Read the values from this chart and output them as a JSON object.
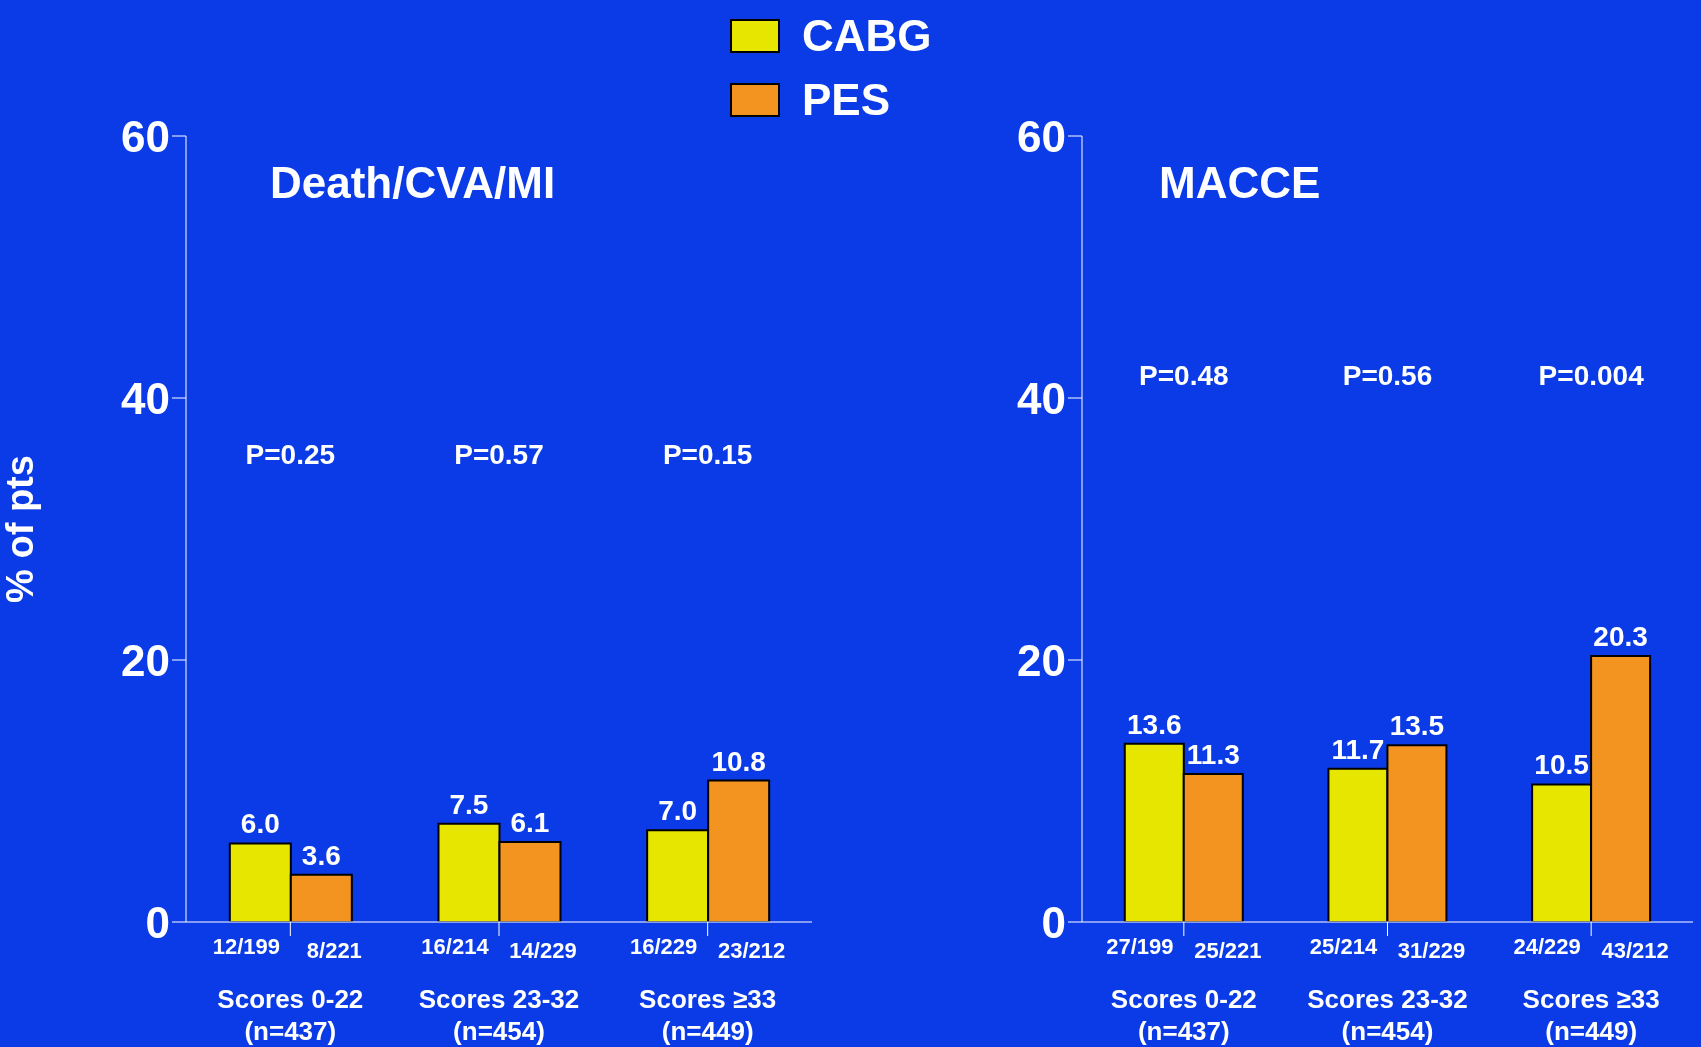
{
  "chart_data": [
    {
      "type": "bar",
      "title": "Death/CVA/MI",
      "ylabel": "% of pts",
      "categories": [
        "Scores 0-22 (n=437)",
        "Scores 23-32 (n=454)",
        "Scores ≥33 (n=449)"
      ],
      "series": [
        {
          "name": "CABG",
          "color": "#e6e600",
          "values": [
            6.0,
            7.5,
            7.0
          ],
          "value_labels": [
            "6.0",
            "7.5",
            "7.0"
          ]
        },
        {
          "name": "PES",
          "color": "#f39420",
          "values": [
            3.6,
            6.1,
            10.8
          ],
          "value_labels": [
            "3.6",
            "6.1",
            "10.8"
          ]
        }
      ],
      "ylim": [
        0,
        60
      ],
      "yticks": [
        0,
        20,
        40,
        60
      ],
      "legend": "top",
      "annotations": [
        "P=0.25",
        "P=0.57",
        "P=0.15",
        {
          "text": "12/199",
          "x": "Scores 0-22 (n=437)",
          "y": 0
        },
        {
          "text": "8/221",
          "x": "Scores 0-22 (n=437)",
          "y": 0
        },
        {
          "text": "16/214",
          "x": "Scores 23-32 (n=454)",
          "y": 0
        },
        {
          "text": "14/229",
          "x": "Scores 23-32 (n=454)",
          "y": 0
        },
        {
          "text": "16/229",
          "x": "Scores ≥33 (n=449)",
          "y": 0
        },
        {
          "text": "23/212",
          "x": "Scores ≥33 (n=449)",
          "y": 0
        }
      ]
    },
    {
      "type": "bar",
      "title": "MACCE",
      "categories": [
        "Scores 0-22 (n=437)",
        "Scores 23-32 (n=454)",
        "Scores ≥33 (n=449)"
      ],
      "series": [
        {
          "color": "#e6e600",
          "values": [
            13.6,
            11.7,
            10.5
          ],
          "value_labels": [
            "13.6",
            "11.7",
            "10.5"
          ]
        },
        {
          "color": "#f39420",
          "values": [
            11.3,
            13.5,
            20.3
          ],
          "value_labels": [
            "11.3",
            "13.5",
            "20.3"
          ]
        }
      ],
      "ylim": [
        0,
        60
      ],
      "yticks": [
        0,
        20,
        40,
        60
      ],
      "annotations": [
        "P=0.48",
        "P=0.56",
        "P=0.004",
        {
          "text": "27/199",
          "x": "Scores 0-22 (n=437)",
          "y": 0
        },
        {
          "text": "25/221",
          "x": "Scores 0-22 (n=437)",
          "y": 0
        },
        {
          "text": "25/214",
          "x": "Scores 23-32 (n=454)",
          "y": 0
        },
        {
          "text": "31/229",
          "x": "Scores 23-32 (n=454)",
          "y": 0
        },
        {
          "text": "24/229",
          "x": "Scores ≥33 (n=449)",
          "y": 0
        },
        {
          "text": "43/212",
          "x": "Scores ≥33 (n=449)",
          "y": 0
        }
      ]
    }
  ]
}
